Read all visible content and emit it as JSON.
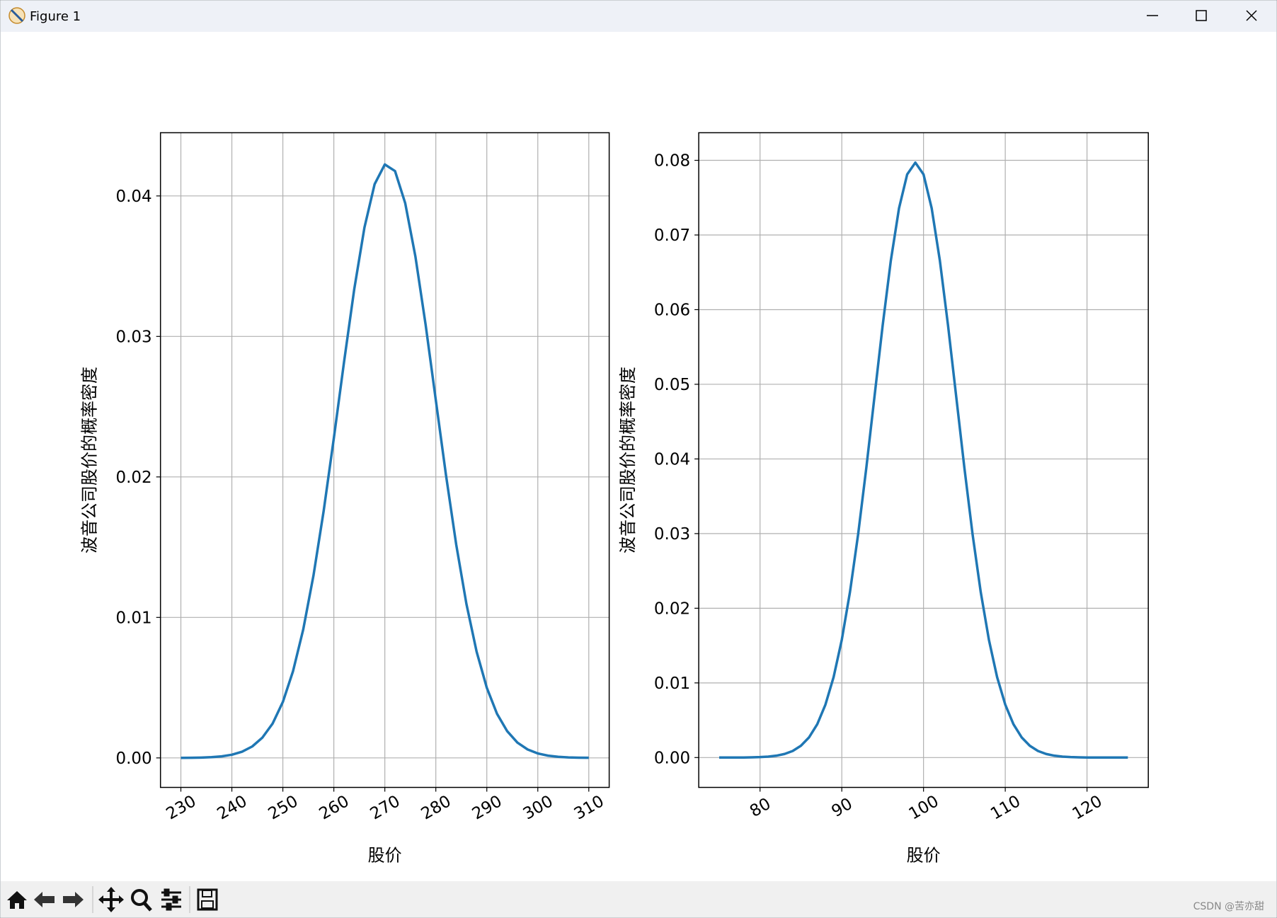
{
  "window": {
    "title": "Figure 1"
  },
  "watermark": "CSDN @苦亦甜",
  "chart_data": [
    {
      "type": "line",
      "color": "#1f77b4",
      "grid": true,
      "xlabel": "股价",
      "ylabel": "波音公司股价的概率密度",
      "x": [
        230,
        232,
        234,
        236,
        238,
        240,
        242,
        244,
        246,
        248,
        250,
        252,
        254,
        256,
        258,
        260,
        262,
        264,
        266,
        268,
        270,
        272,
        274,
        276,
        278,
        280,
        282,
        284,
        286,
        288,
        290,
        292,
        294,
        296,
        298,
        300,
        302,
        304,
        306,
        308,
        310
      ],
      "values": [
        4.2e-06,
        1.02e-05,
        2.36e-05,
        5.24e-05,
        0.000111,
        0.000226,
        0.00044,
        0.000816,
        0.00145,
        0.00245,
        0.00398,
        0.00618,
        0.00915,
        0.01297,
        0.01757,
        0.02276,
        0.02818,
        0.03336,
        0.03775,
        0.04084,
        0.04224,
        0.04177,
        0.03948,
        0.03568,
        0.03083,
        0.02546,
        0.02011,
        0.01518,
        0.01096,
        0.00756,
        0.00499,
        0.00314,
        0.0019,
        0.00109,
        0.000602,
        0.000317,
        0.00016,
        7.69e-05,
        3.54e-05,
        1.56e-05,
        6.6e-06
      ],
      "xlim": [
        226,
        314
      ],
      "ylim": [
        -0.0021,
        0.0445
      ],
      "xticks": [
        230,
        240,
        250,
        260,
        270,
        280,
        290,
        300,
        310
      ],
      "yticks": [
        {
          "value": 0,
          "label": "0.00"
        },
        0.01,
        0.02,
        0.03,
        0.04
      ]
    },
    {
      "type": "line",
      "color": "#1f77b4",
      "grid": true,
      "xlabel": "股价",
      "ylabel": "波音公司股价的概率密度",
      "x": [
        75,
        76,
        77,
        78,
        79,
        80,
        81,
        82,
        83,
        84,
        85,
        86,
        87,
        88,
        89,
        90,
        91,
        92,
        93,
        94,
        95,
        96,
        97,
        98,
        99,
        100,
        101,
        102,
        103,
        104,
        105,
        106,
        107,
        108,
        109,
        110,
        111,
        112,
        113,
        114,
        115,
        116,
        117,
        118,
        119,
        120,
        121,
        122,
        123,
        124,
        125
      ],
      "values": [
        0,
        0,
        0,
        1e-05,
        3e-05,
        6e-05,
        0.00012,
        0.00025,
        0.00048,
        0.00088,
        0.00158,
        0.00271,
        0.00447,
        0.00709,
        0.01078,
        0.01577,
        0.02216,
        0.02991,
        0.0388,
        0.04834,
        0.05787,
        0.06657,
        0.07357,
        0.07812,
        0.0797,
        0.07812,
        0.07357,
        0.06657,
        0.05787,
        0.04834,
        0.0388,
        0.02991,
        0.02216,
        0.01577,
        0.01078,
        0.00709,
        0.00447,
        0.00271,
        0.00158,
        0.00088,
        0.00048,
        0.00025,
        0.00012,
        6e-05,
        3e-05,
        1e-05,
        0,
        0,
        0,
        0,
        0
      ],
      "xlim": [
        72.5,
        127.5
      ],
      "ylim": [
        -0.004,
        0.0837
      ],
      "xticks": [
        80,
        90,
        100,
        110,
        120
      ],
      "yticks": [
        {
          "value": 0,
          "label": "0.00"
        },
        0.01,
        0.02,
        0.03,
        0.04,
        0.05,
        0.06,
        0.07,
        0.08
      ]
    }
  ]
}
